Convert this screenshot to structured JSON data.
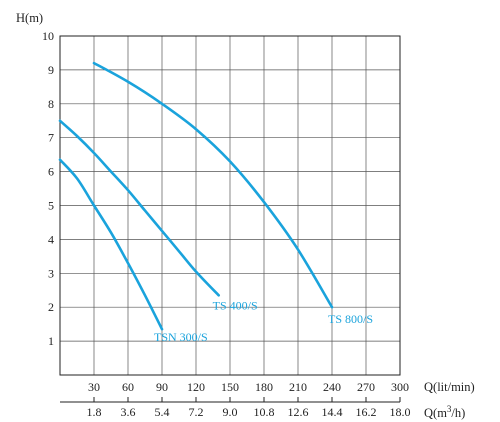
{
  "chart_data": {
    "type": "line",
    "title": "",
    "ylabel": "H(m)",
    "xlabel": "Q(lit/min)",
    "xlabel_secondary": "Q(m³/h)",
    "xlabel_secondary_base": "Q(m",
    "xlabel_secondary_sup": "3",
    "xlabel_secondary_tail": "/h)",
    "xlim": [
      0,
      300
    ],
    "ylim": [
      0,
      10
    ],
    "x_ticks": [
      30,
      60,
      90,
      120,
      150,
      180,
      210,
      240,
      270,
      300
    ],
    "x_tick_labels": [
      "30",
      "60",
      "90",
      "120",
      "150",
      "180",
      "210",
      "240",
      "270",
      "300"
    ],
    "x_secondary_ticks": [
      30,
      60,
      90,
      120,
      150,
      180,
      210,
      240,
      270,
      300
    ],
    "x_secondary_tick_labels": [
      "1.8",
      "3.6",
      "5.4",
      "7.2",
      "9.0",
      "10.8",
      "12.6",
      "14.4",
      "16.2",
      "18.0"
    ],
    "y_ticks": [
      1,
      2,
      3,
      4,
      5,
      6,
      7,
      8,
      9,
      10
    ],
    "y_tick_labels": [
      "1",
      "2",
      "3",
      "4",
      "5",
      "6",
      "7",
      "8",
      "9",
      "10"
    ],
    "grid": true,
    "series_color": "#1aa3dc",
    "series": [
      {
        "name": "TS 800/S",
        "x": [
          30,
          60,
          90,
          120,
          150,
          180,
          210,
          240
        ],
        "y": [
          9.2,
          8.65,
          8.0,
          7.25,
          6.3,
          5.1,
          3.7,
          2.0
        ]
      },
      {
        "name": "TS 400/S",
        "x": [
          0,
          15,
          30,
          45,
          60,
          75,
          90,
          105,
          120,
          140
        ],
        "y": [
          7.5,
          7.05,
          6.55,
          6.0,
          5.45,
          4.85,
          4.25,
          3.65,
          3.05,
          2.35
        ]
      },
      {
        "name": "TSN 300/S",
        "x": [
          0,
          15,
          30,
          45,
          60,
          75,
          90
        ],
        "y": [
          6.35,
          5.8,
          5.0,
          4.2,
          3.3,
          2.35,
          1.35
        ]
      }
    ]
  }
}
